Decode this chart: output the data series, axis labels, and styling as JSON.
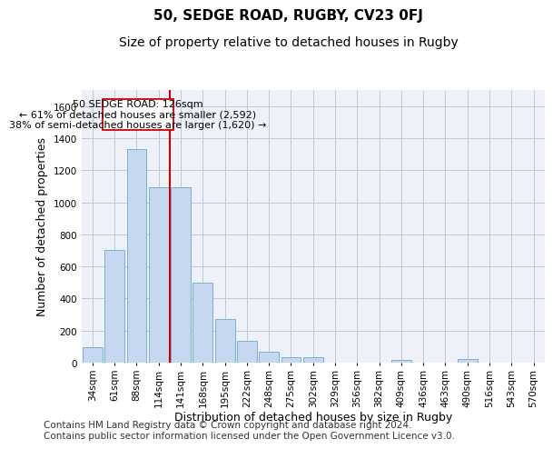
{
  "title": "50, SEDGE ROAD, RUGBY, CV23 0FJ",
  "subtitle": "Size of property relative to detached houses in Rugby",
  "xlabel": "Distribution of detached houses by size in Rugby",
  "ylabel": "Number of detached properties",
  "categories": [
    "34sqm",
    "61sqm",
    "88sqm",
    "114sqm",
    "141sqm",
    "168sqm",
    "195sqm",
    "222sqm",
    "248sqm",
    "275sqm",
    "302sqm",
    "329sqm",
    "356sqm",
    "382sqm",
    "409sqm",
    "436sqm",
    "463sqm",
    "490sqm",
    "516sqm",
    "543sqm",
    "570sqm"
  ],
  "values": [
    95,
    700,
    1330,
    1095,
    1095,
    500,
    270,
    135,
    70,
    35,
    35,
    0,
    0,
    0,
    15,
    0,
    0,
    20,
    0,
    0,
    0
  ],
  "bar_color": "#c5d8f0",
  "bar_edge_color": "#7bafd4",
  "vline_x": 3.5,
  "vline_color": "#cc0000",
  "annotation_line1": "50 SEDGE ROAD: 126sqm",
  "annotation_line2": "← 61% of detached houses are smaller (2,592)",
  "annotation_line3": "38% of semi-detached houses are larger (1,620) →",
  "ylim": [
    0,
    1700
  ],
  "yticks": [
    0,
    200,
    400,
    600,
    800,
    1000,
    1200,
    1400,
    1600
  ],
  "grid_color": "#c0c8d8",
  "bg_color": "#eef2f8",
  "footnote": "Contains HM Land Registry data © Crown copyright and database right 2024.\nContains public sector information licensed under the Open Government Licence v3.0.",
  "title_fontsize": 11,
  "subtitle_fontsize": 10,
  "xlabel_fontsize": 9,
  "ylabel_fontsize": 9,
  "tick_fontsize": 7.5,
  "annot_fontsize": 8,
  "footnote_fontsize": 7.5
}
